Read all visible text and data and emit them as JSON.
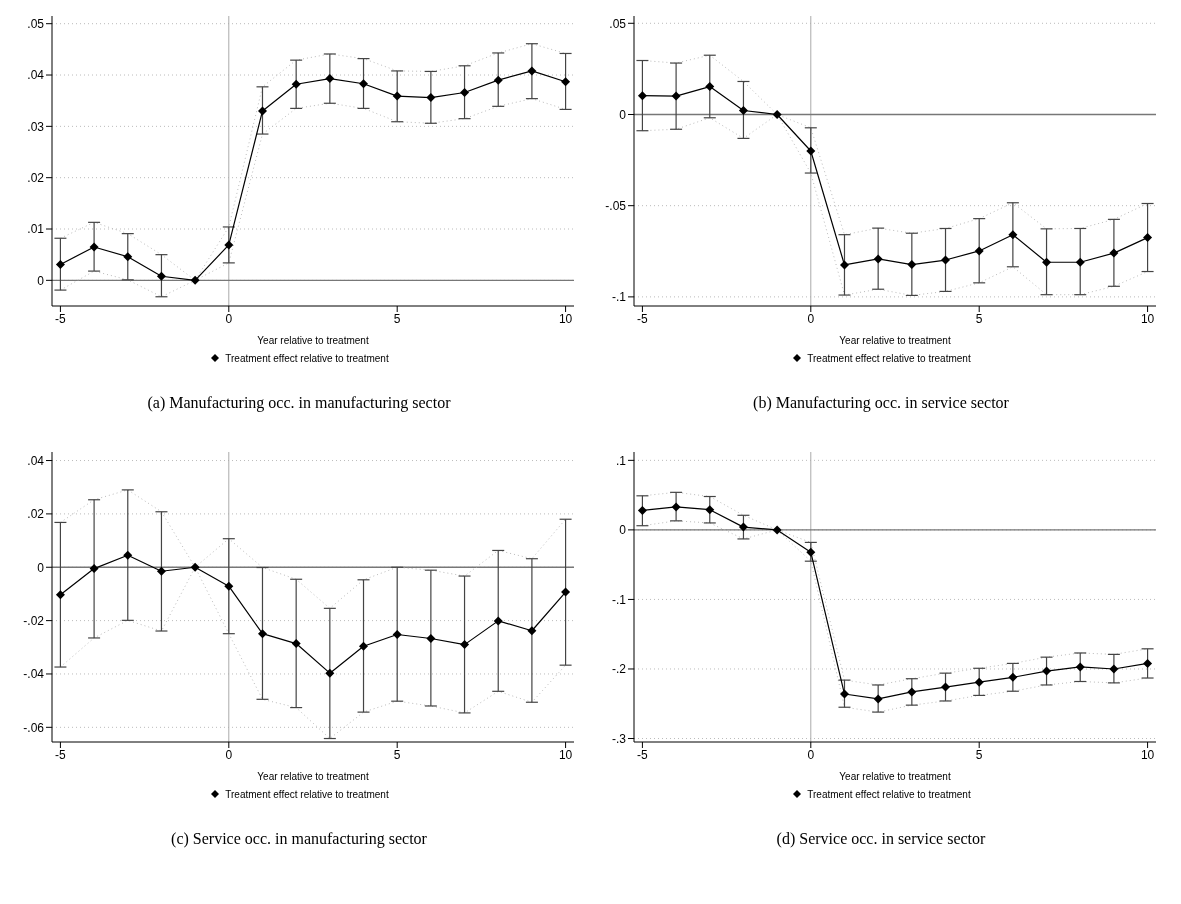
{
  "chart_data": [
    {
      "type": "line",
      "xlabel": "Year relative to treatment",
      "annotations": [
        "(a) Manufacturing occ. in manufacturing sector"
      ],
      "x": [
        -5,
        -4,
        -3,
        -2,
        -1,
        0,
        1,
        2,
        3,
        4,
        5,
        6,
        7,
        8,
        9,
        10
      ],
      "xlim": [
        -5.25,
        10.25
      ],
      "xticks": [
        -5,
        0,
        5,
        10
      ],
      "ylim": [
        -0.005,
        0.0515
      ],
      "yticks": [
        {
          "value": 0,
          "label": "0"
        },
        {
          "value": 0.01,
          "label": ".01"
        },
        {
          "value": 0.02,
          "label": ".02"
        },
        {
          "value": 0.03,
          "label": ".03"
        },
        {
          "value": 0.04,
          "label": ".04"
        },
        {
          "value": 0.05,
          "label": ".05"
        }
      ],
      "grid": "y",
      "legend": "bottom",
      "marker": "diamond",
      "ref_lines": [
        {
          "axis": "x",
          "value": 0,
          "color": "#aaaaaa"
        },
        {
          "axis": "y",
          "value": 0,
          "color": "#777777"
        }
      ],
      "series": [
        {
          "color": "#bbbbbb",
          "marker": "none",
          "line_style": "dotted",
          "values": [
            -0.0019,
            0.0018,
            0.0001,
            -0.0032,
            0,
            0.0034,
            0.0285,
            0.0335,
            0.0345,
            0.0335,
            0.0309,
            0.0306,
            0.0315,
            0.0339,
            0.0354,
            0.0333
          ]
        },
        {
          "color": "#bbbbbb",
          "marker": "none",
          "line_style": "dotted",
          "values": [
            0.0082,
            0.0113,
            0.0091,
            0.005,
            0,
            0.0104,
            0.0377,
            0.0429,
            0.0441,
            0.0432,
            0.0408,
            0.0407,
            0.0418,
            0.0443,
            0.0461,
            0.0442
          ]
        },
        {
          "name": "Treatment effect relative to treatment",
          "color": "#000000",
          "values": [
            0.0031,
            0.0065,
            0.0046,
            0.0008,
            0,
            0.0069,
            0.033,
            0.0382,
            0.0393,
            0.0383,
            0.0359,
            0.0356,
            0.0366,
            0.039,
            0.0408,
            0.0387
          ],
          "errors": [
            [
              -0.0019,
              0.0082
            ],
            [
              0.0018,
              0.0113
            ],
            [
              0.0001,
              0.0091
            ],
            [
              -0.0032,
              0.005
            ],
            null,
            [
              0.0034,
              0.0104
            ],
            [
              0.0285,
              0.0377
            ],
            [
              0.0335,
              0.0429
            ],
            [
              0.0345,
              0.0441
            ],
            [
              0.0335,
              0.0432
            ],
            [
              0.0309,
              0.0408
            ],
            [
              0.0306,
              0.0407
            ],
            [
              0.0315,
              0.0418
            ],
            [
              0.0339,
              0.0443
            ],
            [
              0.0354,
              0.0461
            ],
            [
              0.0333,
              0.0442
            ]
          ]
        }
      ]
    },
    {
      "type": "line",
      "xlabel": "Year relative to treatment",
      "annotations": [
        "(b) Manufacturing occ. in service sector"
      ],
      "x": [
        -5,
        -4,
        -3,
        -2,
        -1,
        0,
        1,
        2,
        3,
        4,
        5,
        6,
        7,
        8,
        9,
        10
      ],
      "xlim": [
        -5.25,
        10.25
      ],
      "xticks": [
        -5,
        0,
        5,
        10
      ],
      "ylim": [
        -0.105,
        0.054
      ],
      "yticks": [
        {
          "value": -0.1,
          "label": "-.1"
        },
        {
          "value": -0.05,
          "label": "-.05"
        },
        {
          "value": 0,
          "label": "0"
        },
        {
          "value": 0.05,
          "label": ".05"
        }
      ],
      "grid": "y",
      "legend": "bottom",
      "marker": "diamond",
      "ref_lines": [
        {
          "axis": "x",
          "value": 0,
          "color": "#aaaaaa"
        },
        {
          "axis": "y",
          "value": 0,
          "color": "#777777"
        }
      ],
      "series": [
        {
          "color": "#bbbbbb",
          "marker": "none",
          "line_style": "dotted",
          "values": [
            -0.0089,
            -0.0081,
            -0.0018,
            -0.0131,
            0,
            -0.0321,
            -0.099,
            -0.0958,
            -0.0992,
            -0.097,
            -0.0923,
            -0.0835,
            -0.0988,
            -0.0988,
            -0.0942,
            -0.0861
          ]
        },
        {
          "color": "#bbbbbb",
          "marker": "none",
          "line_style": "dotted",
          "values": [
            0.0296,
            0.0282,
            0.0325,
            0.0181,
            0,
            -0.0073,
            -0.0659,
            -0.0623,
            -0.0651,
            -0.0625,
            -0.0571,
            -0.0484,
            -0.0627,
            -0.0625,
            -0.0575,
            -0.0488
          ]
        },
        {
          "name": "Treatment effect relative to treatment",
          "color": "#000000",
          "values": [
            0.0103,
            0.0101,
            0.0153,
            0.0022,
            0,
            -0.02,
            -0.0825,
            -0.0792,
            -0.0823,
            -0.0798,
            -0.0748,
            -0.0659,
            -0.081,
            -0.081,
            -0.076,
            -0.0675
          ],
          "errors": [
            [
              -0.0089,
              0.0296
            ],
            [
              -0.0081,
              0.0282
            ],
            [
              -0.0018,
              0.0325
            ],
            [
              -0.0131,
              0.0181
            ],
            null,
            [
              -0.0321,
              -0.0073
            ],
            [
              -0.099,
              -0.0659
            ],
            [
              -0.0958,
              -0.0623
            ],
            [
              -0.0992,
              -0.0651
            ],
            [
              -0.097,
              -0.0625
            ],
            [
              -0.0923,
              -0.0571
            ],
            [
              -0.0835,
              -0.0484
            ],
            [
              -0.0988,
              -0.0627
            ],
            [
              -0.0988,
              -0.0625
            ],
            [
              -0.0942,
              -0.0575
            ],
            [
              -0.0861,
              -0.0488
            ]
          ]
        }
      ]
    },
    {
      "type": "line",
      "xlabel": "Year relative to treatment",
      "annotations": [
        "(c) Service occ. in manufacturing sector"
      ],
      "x": [
        -5,
        -4,
        -3,
        -2,
        -1,
        0,
        1,
        2,
        3,
        4,
        5,
        6,
        7,
        8,
        9,
        10
      ],
      "xlim": [
        -5.25,
        10.25
      ],
      "xticks": [
        -5,
        0,
        5,
        10
      ],
      "ylim": [
        -0.0655,
        0.0432
      ],
      "yticks": [
        {
          "value": -0.06,
          "label": "-.06"
        },
        {
          "value": -0.04,
          "label": "-.04"
        },
        {
          "value": -0.02,
          "label": "-.02"
        },
        {
          "value": 0,
          "label": "0"
        },
        {
          "value": 0.02,
          "label": ".02"
        },
        {
          "value": 0.04,
          "label": ".04"
        }
      ],
      "grid": "y",
      "legend": "bottom",
      "marker": "diamond",
      "ref_lines": [
        {
          "axis": "x",
          "value": 0,
          "color": "#aaaaaa"
        },
        {
          "axis": "y",
          "value": 0,
          "color": "#777777"
        }
      ],
      "series": [
        {
          "color": "#bbbbbb",
          "marker": "none",
          "line_style": "dotted",
          "values": [
            -0.0374,
            -0.0265,
            -0.0199,
            -0.0239,
            0,
            -0.0249,
            -0.0495,
            -0.0526,
            -0.0642,
            -0.0543,
            -0.0502,
            -0.052,
            -0.0546,
            -0.0465,
            -0.0506,
            -0.0367
          ]
        },
        {
          "color": "#bbbbbb",
          "marker": "none",
          "line_style": "dotted",
          "values": [
            0.0168,
            0.0253,
            0.029,
            0.0208,
            0,
            0.0107,
            -0.0001,
            -0.0045,
            -0.0154,
            -0.0047,
            0,
            -0.0011,
            -0.0033,
            0.0063,
            0.0032,
            0.018
          ]
        },
        {
          "name": "Treatment effect relative to treatment",
          "color": "#000000",
          "values": [
            -0.0103,
            -0.0005,
            0.0045,
            -0.0015,
            0,
            -0.0071,
            -0.0249,
            -0.0286,
            -0.0397,
            -0.0296,
            -0.0252,
            -0.0267,
            -0.029,
            -0.0201,
            -0.0238,
            -0.0093
          ],
          "errors": [
            [
              -0.0374,
              0.0168
            ],
            [
              -0.0265,
              0.0253
            ],
            [
              -0.0199,
              0.029
            ],
            [
              -0.0239,
              0.0208
            ],
            null,
            [
              -0.0249,
              0.0107
            ],
            [
              -0.0495,
              -0.0001
            ],
            [
              -0.0526,
              -0.0045
            ],
            [
              -0.0642,
              -0.0154
            ],
            [
              -0.0543,
              -0.0047
            ],
            [
              -0.0502,
              0
            ],
            [
              -0.052,
              -0.0011
            ],
            [
              -0.0546,
              -0.0033
            ],
            [
              -0.0465,
              0.0063
            ],
            [
              -0.0506,
              0.0032
            ],
            [
              -0.0367,
              0.018
            ]
          ]
        }
      ]
    },
    {
      "type": "line",
      "xlabel": "Year relative to treatment",
      "annotations": [
        "(d) Service occ. in service sector"
      ],
      "x": [
        -5,
        -4,
        -3,
        -2,
        -1,
        0,
        1,
        2,
        3,
        4,
        5,
        6,
        7,
        8,
        9,
        10
      ],
      "xlim": [
        -5.25,
        10.25
      ],
      "xticks": [
        -5,
        0,
        5,
        10
      ],
      "ylim": [
        -0.305,
        0.112
      ],
      "yticks": [
        {
          "value": -0.3,
          "label": "-.3"
        },
        {
          "value": -0.2,
          "label": "-.2"
        },
        {
          "value": -0.1,
          "label": "-.1"
        },
        {
          "value": 0,
          "label": "0"
        },
        {
          "value": 0.1,
          "label": ".1"
        }
      ],
      "grid": "y",
      "legend": "bottom",
      "marker": "diamond",
      "ref_lines": [
        {
          "axis": "x",
          "value": 0,
          "color": "#aaaaaa"
        },
        {
          "axis": "y",
          "value": 0,
          "color": "#777777"
        }
      ],
      "series": [
        {
          "color": "#bbbbbb",
          "marker": "none",
          "line_style": "dotted",
          "values": [
            0.006,
            0.013,
            0.01,
            -0.013,
            0,
            -0.045,
            -0.255,
            -0.262,
            -0.252,
            -0.246,
            -0.238,
            -0.232,
            -0.223,
            -0.218,
            -0.22,
            -0.213
          ]
        },
        {
          "color": "#bbbbbb",
          "marker": "none",
          "line_style": "dotted",
          "values": [
            0.049,
            0.054,
            0.048,
            0.021,
            0,
            -0.018,
            -0.216,
            -0.223,
            -0.214,
            -0.206,
            -0.199,
            -0.192,
            -0.183,
            -0.177,
            -0.179,
            -0.171
          ]
        },
        {
          "name": "Treatment effect relative to treatment",
          "color": "#000000",
          "values": [
            0.028,
            0.033,
            0.029,
            0.004,
            0,
            -0.032,
            -0.236,
            -0.243,
            -0.233,
            -0.226,
            -0.219,
            -0.212,
            -0.203,
            -0.197,
            -0.2,
            -0.192
          ],
          "errors": [
            [
              0.006,
              0.049
            ],
            [
              0.013,
              0.054
            ],
            [
              0.01,
              0.048
            ],
            [
              -0.013,
              0.021
            ],
            null,
            [
              -0.045,
              -0.018
            ],
            [
              -0.255,
              -0.216
            ],
            [
              -0.262,
              -0.223
            ],
            [
              -0.252,
              -0.214
            ],
            [
              -0.246,
              -0.206
            ],
            [
              -0.238,
              -0.199
            ],
            [
              -0.232,
              -0.192
            ],
            [
              -0.223,
              -0.183
            ],
            [
              -0.218,
              -0.177
            ],
            [
              -0.22,
              -0.179
            ],
            [
              -0.213,
              -0.171
            ]
          ]
        }
      ]
    }
  ]
}
